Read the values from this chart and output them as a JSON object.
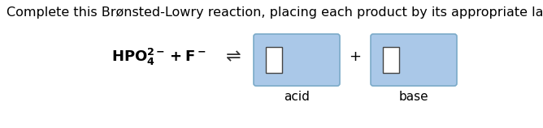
{
  "background_color": "#ffffff",
  "title_text": "Complete this Brønsted-Lowry reaction, placing each product by its appropriate label.",
  "title_fontsize": 11.5,
  "equation_fontsize": 13,
  "arrow_fontsize": 16,
  "plus_fontsize": 13,
  "label_fontsize": 11,
  "box_fill": "#aac8e8",
  "box_edge": "#7aaac8",
  "inner_box_fill": "#ffffff",
  "inner_box_edge": "#444444",
  "fig_width": 6.68,
  "fig_height": 1.58,
  "dpi": 100
}
